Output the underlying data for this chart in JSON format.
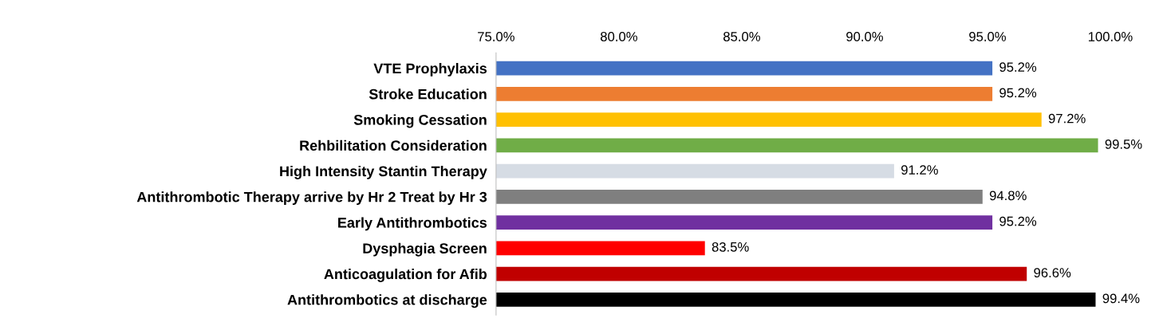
{
  "chart_data": {
    "type": "bar",
    "orientation": "horizontal",
    "categories": [
      "VTE Prophylaxis",
      "Stroke Education",
      "Smoking Cessation",
      "Rehbilitation Consideration",
      "High Intensity Stantin Therapy",
      "Antithrombotic Therapy arrive by Hr 2 Treat by Hr 3",
      "Early Antithrombotics",
      "Dysphagia Screen",
      "Anticoagulation for Afib",
      "Antithrombotics at discharge"
    ],
    "values": [
      95.2,
      95.2,
      97.2,
      99.5,
      91.2,
      94.8,
      95.2,
      83.5,
      96.6,
      99.4
    ],
    "colors": [
      "#4472c4",
      "#ed7d31",
      "#ffc000",
      "#70ad47",
      "#d6dce4",
      "#7f7f7f",
      "#7030a0",
      "#ff0000",
      "#c00000",
      "#000000"
    ],
    "value_labels": [
      "95.2%",
      "95.2%",
      "97.2%",
      "99.5%",
      "91.2%",
      "94.8%",
      "95.2%",
      "83.5%",
      "96.6%",
      "99.4%"
    ],
    "xlim": [
      75,
      100
    ],
    "xticks": [
      {
        "value": 75,
        "label": "75.0%"
      },
      {
        "value": 80,
        "label": "80.0%"
      },
      {
        "value": 85,
        "label": "85.0%"
      },
      {
        "value": 90,
        "label": "90.0%"
      },
      {
        "value": 95,
        "label": "95.0%"
      },
      {
        "value": 100,
        "label": "100.0%"
      }
    ],
    "grid": false,
    "legend": false
  }
}
